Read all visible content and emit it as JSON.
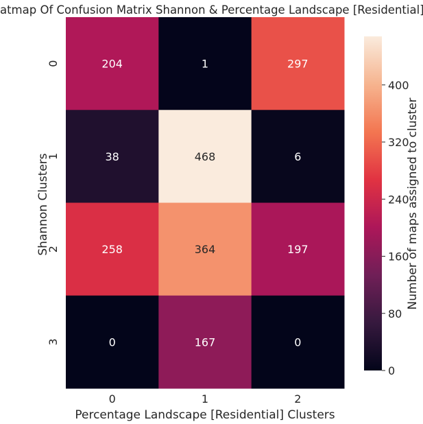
{
  "chart_data": {
    "type": "heatmap",
    "title": "Heatmap Of Confusion Matrix Shannon & Percentage Landscape [Residential]",
    "xlabel": "Percentage Landscape [Residential] Clusters",
    "ylabel": "Shannon Clusters",
    "x_categories": [
      "0",
      "1",
      "2"
    ],
    "y_categories": [
      "0",
      "1",
      "2",
      "3"
    ],
    "values": [
      [
        204,
        1,
        297
      ],
      [
        38,
        468,
        6
      ],
      [
        258,
        364,
        197
      ],
      [
        0,
        167,
        0
      ]
    ],
    "colorbar": {
      "label": "Number of maps assigned to cluster",
      "range": [
        0,
        468
      ],
      "ticks": [
        0,
        80,
        160,
        240,
        320,
        400
      ]
    },
    "colormap": [
      "#03051a",
      "#36193e",
      "#701f57",
      "#ad1759",
      "#e13342",
      "#f37651",
      "#f6b48f",
      "#faebdd"
    ]
  }
}
